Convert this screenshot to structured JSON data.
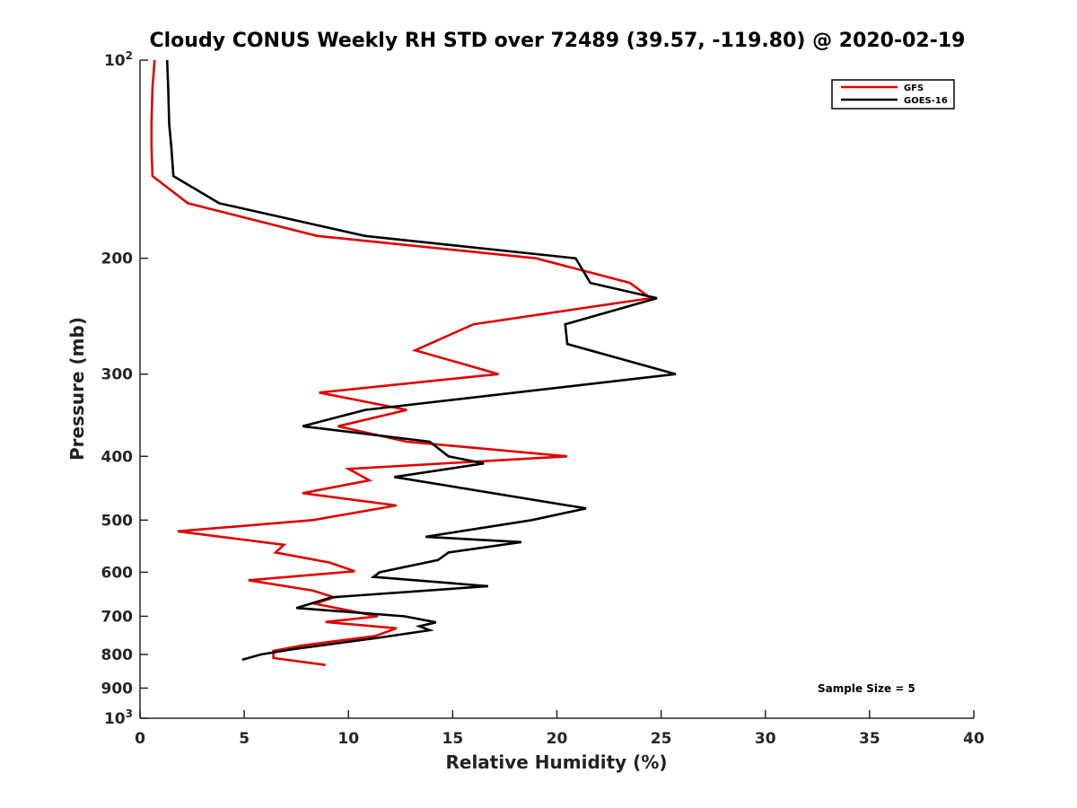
{
  "chart_data": {
    "type": "line",
    "title": "Cloudy CONUS Weekly RH STD over 72489 (39.57, -119.80) @ 2020-02-19",
    "xlabel": "Relative Humidity (%)",
    "ylabel": "Pressure (mb)",
    "xlim": [
      0,
      40
    ],
    "ylim": [
      100,
      1000
    ],
    "y_scale": "log",
    "y_reversed": true,
    "x_ticks": [
      0,
      5,
      10,
      15,
      20,
      25,
      30,
      35,
      40
    ],
    "x_tick_labels": [
      "0",
      "5",
      "10",
      "15",
      "20",
      "25",
      "30",
      "35",
      "40"
    ],
    "y_ticks": [
      {
        "value": 100,
        "label": "10",
        "sup": "2"
      },
      {
        "value": 200,
        "label": "200"
      },
      {
        "value": 300,
        "label": "300"
      },
      {
        "value": 400,
        "label": "400"
      },
      {
        "value": 500,
        "label": "500"
      },
      {
        "value": 600,
        "label": "600"
      },
      {
        "value": 700,
        "label": "700"
      },
      {
        "value": 800,
        "label": "800"
      },
      {
        "value": 900,
        "label": "900"
      },
      {
        "value": 1000,
        "label": "10",
        "sup": "3"
      }
    ],
    "grid": false,
    "legend_position": "top-right",
    "annotation": "Sample Size = 5",
    "series": [
      {
        "name": "GFS",
        "color": "#e00000",
        "points": [
          [
            0.7,
            100
          ],
          [
            0.6,
            110
          ],
          [
            0.55,
            125
          ],
          [
            0.55,
            135
          ],
          [
            0.6,
            150
          ],
          [
            2.3,
            165
          ],
          [
            8.5,
            185
          ],
          [
            19.0,
            200
          ],
          [
            23.5,
            218
          ],
          [
            24.5,
            230
          ],
          [
            16.0,
            252
          ],
          [
            13.2,
            276
          ],
          [
            17.2,
            300
          ],
          [
            8.6,
            320
          ],
          [
            12.8,
            340
          ],
          [
            9.5,
            360
          ],
          [
            12.8,
            380
          ],
          [
            20.5,
            400
          ],
          [
            10.0,
            418
          ],
          [
            11.0,
            435
          ],
          [
            7.8,
            455
          ],
          [
            12.3,
            475
          ],
          [
            8.3,
            500
          ],
          [
            1.8,
            520
          ],
          [
            6.9,
            545
          ],
          [
            6.5,
            560
          ],
          [
            9.1,
            580
          ],
          [
            10.3,
            598
          ],
          [
            5.2,
            617
          ],
          [
            8.3,
            640
          ],
          [
            9.3,
            655
          ],
          [
            8.4,
            670
          ],
          [
            11.4,
            700
          ],
          [
            8.9,
            714
          ],
          [
            12.3,
            730
          ],
          [
            11.3,
            750
          ],
          [
            7.8,
            775
          ],
          [
            6.4,
            790
          ],
          [
            6.4,
            810
          ],
          [
            8.9,
            830
          ]
        ]
      },
      {
        "name": "GOES-16",
        "color": "#000000",
        "points": [
          [
            1.3,
            100
          ],
          [
            1.35,
            110
          ],
          [
            1.4,
            125
          ],
          [
            1.5,
            135
          ],
          [
            1.6,
            150
          ],
          [
            3.8,
            165
          ],
          [
            10.8,
            185
          ],
          [
            20.9,
            200
          ],
          [
            21.3,
            210
          ],
          [
            21.6,
            218
          ],
          [
            24.8,
            230
          ],
          [
            20.4,
            252
          ],
          [
            20.5,
            270
          ],
          [
            25.7,
            300
          ],
          [
            10.8,
            340
          ],
          [
            7.8,
            360
          ],
          [
            13.9,
            380
          ],
          [
            14.8,
            400
          ],
          [
            16.5,
            410
          ],
          [
            12.2,
            430
          ],
          [
            21.4,
            480
          ],
          [
            18.8,
            500
          ],
          [
            13.7,
            530
          ],
          [
            18.3,
            540
          ],
          [
            14.8,
            560
          ],
          [
            14.3,
            575
          ],
          [
            11.5,
            600
          ],
          [
            11.2,
            610
          ],
          [
            16.7,
            630
          ],
          [
            9.2,
            655
          ],
          [
            7.5,
            680
          ],
          [
            12.7,
            700
          ],
          [
            14.2,
            715
          ],
          [
            13.4,
            725
          ],
          [
            13.9,
            735
          ],
          [
            11.4,
            755
          ],
          [
            7.4,
            785
          ],
          [
            5.8,
            800
          ],
          [
            4.9,
            815
          ]
        ]
      }
    ]
  }
}
